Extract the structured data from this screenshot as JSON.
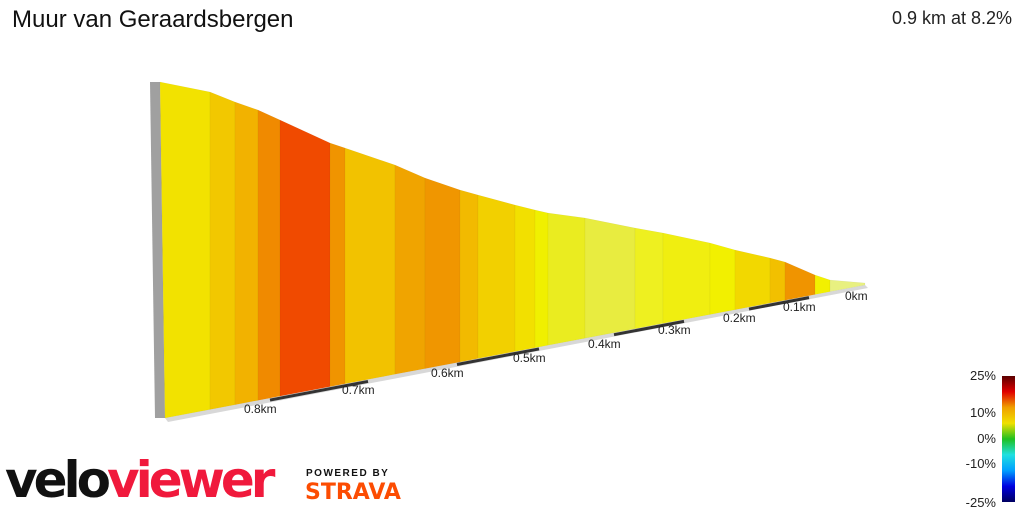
{
  "title": "Muur van Geraardsbergen",
  "summary": "0.9 km at 8.2%",
  "chart_data": {
    "type": "area",
    "style": "3d-elevation-profile",
    "x_axis_ticks": [
      "0.8km",
      "0.7km",
      "0.6km",
      "0.5km",
      "0.4km",
      "0.3km",
      "0.2km",
      "0.1km",
      "0km"
    ],
    "segments": [
      {
        "gradient": 7,
        "color": "#f2e200"
      },
      {
        "gradient": 8,
        "color": "#f2c800"
      },
      {
        "gradient": 9,
        "color": "#f2b200"
      },
      {
        "gradient": 10.5,
        "color": "#f08a00"
      },
      {
        "gradient": 13,
        "color": "#f04a00"
      },
      {
        "gradient": 10,
        "color": "#f09400"
      },
      {
        "gradient": 8.5,
        "color": "#f2c200"
      },
      {
        "gradient": 9.5,
        "color": "#f0a400"
      },
      {
        "gradient": 10,
        "color": "#f09600"
      },
      {
        "gradient": 9,
        "color": "#f2ba00"
      },
      {
        "gradient": 8,
        "color": "#f2d000"
      },
      {
        "gradient": 7,
        "color": "#f2e000"
      },
      {
        "gradient": 6,
        "color": "#f0f000"
      },
      {
        "gradient": 5.5,
        "color": "#eaec20"
      },
      {
        "gradient": 5,
        "color": "#e8ec40"
      },
      {
        "gradient": 5.5,
        "color": "#eef020"
      },
      {
        "gradient": 6,
        "color": "#f0ee10"
      },
      {
        "gradient": 6,
        "color": "#f2f000"
      },
      {
        "gradient": 7.5,
        "color": "#f2d800"
      },
      {
        "gradient": 8.5,
        "color": "#f2c000"
      },
      {
        "gradient": 10,
        "color": "#f09400"
      },
      {
        "gradient": 6,
        "color": "#f2f000"
      },
      {
        "gradient": 4,
        "color": "#e8f080"
      }
    ],
    "legend": {
      "labels": [
        "25%",
        "10%",
        "0%",
        "-10%",
        "-25%"
      ],
      "colors": [
        "#5a0000",
        "#e00000",
        "#f0a000",
        "#f0e000",
        "#20c020",
        "#20e0e0",
        "#00a0ff",
        "#0000e0",
        "#000060"
      ]
    }
  },
  "branding": {
    "logo_velo": "velo",
    "logo_viewer": "viewer",
    "powered_by": "POWERED BY",
    "strava": "STRAVA"
  }
}
